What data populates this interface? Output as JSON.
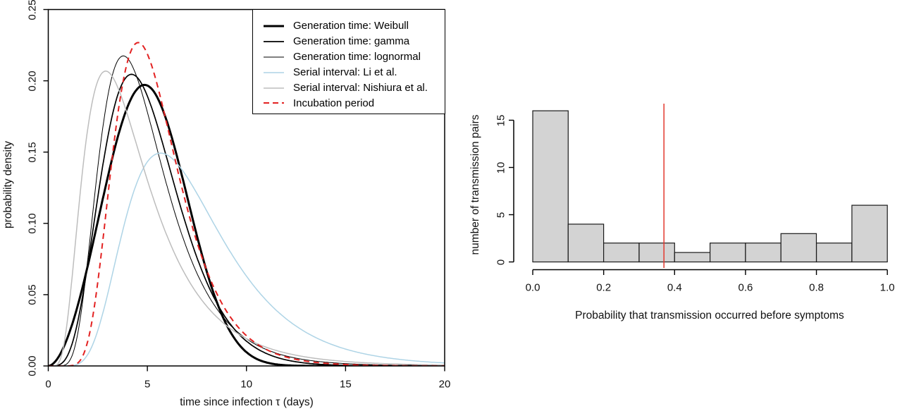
{
  "page": {
    "background": "#ffffff"
  },
  "chart_data": [
    {
      "id": "left-distributions",
      "type": "line",
      "title": "",
      "xlabel": "time since infection τ (days)",
      "ylabel": "probability density",
      "xlim": [
        0,
        20
      ],
      "ylim": [
        0,
        0.25
      ],
      "x_ticks": [
        0,
        5,
        10,
        15,
        20
      ],
      "x_tick_labels": [
        "0",
        "5",
        "10",
        "15",
        "20"
      ],
      "y_ticks": [
        0,
        0.05,
        0.1,
        0.15,
        0.2,
        0.25
      ],
      "y_tick_labels": [
        "0.00",
        "0.05",
        "0.10",
        "0.15",
        "0.20",
        "0.25"
      ],
      "grid": false,
      "box": true,
      "legend_position": "top-right",
      "x_samples": [
        0,
        1,
        2,
        3,
        4,
        5,
        6,
        7,
        8,
        9,
        10,
        11,
        12,
        13,
        14,
        15,
        16,
        17,
        18,
        19,
        20
      ],
      "series": [
        {
          "name": "Generation time: Weibull",
          "color": "#000000",
          "width": 3,
          "dash": null,
          "distribution": {
            "type": "weibull",
            "shape": 2.826,
            "scale": 5.665
          },
          "peak": {
            "x": 4.85,
            "y": 0.197
          },
          "y_samples": [
            0,
            0.0209,
            0.0707,
            0.1324,
            0.1818,
            0.1967,
            0.1709,
            0.1192,
            0.0659,
            0.0287,
            0.0097,
            0.0025,
            0.0005,
            0.0001,
            0,
            0,
            0,
            0,
            0,
            0,
            0
          ]
        },
        {
          "name": "Generation time: gamma",
          "color": "#000000",
          "width": 1.7,
          "dash": null,
          "distribution": {
            "type": "gamma",
            "shape": 5.8,
            "rate": 1.143
          },
          "peak": {
            "x": 4.2,
            "y": 0.206
          },
          "y_samples": [
            0,
            0.0081,
            0.0718,
            0.1603,
            0.2034,
            0.1893,
            0.1448,
            0.0968,
            0.0586,
            0.0328,
            0.0174,
            0.0088,
            0.0042,
            0.002,
            0.0009,
            0.0004,
            0.0002,
            0.0001,
            0,
            0,
            0
          ]
        },
        {
          "name": "Generation time: lognormal",
          "color": "#000000",
          "width": 1,
          "dash": null,
          "distribution": {
            "type": "lognormal",
            "meanlog": 1.525,
            "sdlog": 0.44
          },
          "peak": {
            "x": 3.8,
            "y": 0.217
          },
          "y_samples": [
            0,
            0.0022,
            0.0759,
            0.189,
            0.2157,
            0.178,
            0.1257,
            0.082,
            0.0512,
            0.0314,
            0.019,
            0.0115,
            0.007,
            0.0043,
            0.0026,
            0.0016,
            0.001,
            0.0007,
            0.0004,
            0.0003,
            0.0002
          ]
        },
        {
          "name": "Serial interval: Li et al.",
          "color": "#aed4e6",
          "width": 1.5,
          "dash": null,
          "distribution": {
            "type": "lognormal",
            "meanlog": 1.9215,
            "sdlog": 0.4323
          },
          "peak": {
            "x": 5.7,
            "y": 0.148
          },
          "y_samples": [
            0,
            0,
            0.0082,
            0.0503,
            0.1072,
            0.1422,
            0.147,
            0.1316,
            0.1079,
            0.0837,
            0.0626,
            0.0457,
            0.0329,
            0.0235,
            0.0166,
            0.0118,
            0.0083,
            0.0059,
            0.0042,
            0.003,
            0.0021
          ]
        },
        {
          "name": "Serial interval: Nishiura et al.",
          "color": "#bdbdbd",
          "width": 1.5,
          "dash": null,
          "distribution": {
            "type": "lognormal",
            "meanlog": 1.3863,
            "sdlog": 0.568
          },
          "peak": {
            "x": 2.9,
            "y": 0.206
          },
          "y_samples": [
            0,
            0.0357,
            0.1668,
            0.2059,
            0.1756,
            0.13,
            0.0907,
            0.0618,
            0.0417,
            0.0282,
            0.0191,
            0.0131,
            0.009,
            0.0063,
            0.0044,
            0.0031,
            0.0022,
            0.0016,
            0.0012,
            0.0009,
            0.0006
          ]
        },
        {
          "name": "Incubation period",
          "color": "#e32222",
          "width": 2,
          "dash": [
            8,
            6
          ],
          "distribution": {
            "type": "lognormal",
            "meanlog": 1.644,
            "sdlog": 0.363
          },
          "peak": {
            "x": 4.55,
            "y": 0.227
          },
          "y_samples": [
            0,
            0,
            0.0178,
            0.1185,
            0.2135,
            0.2188,
            0.1686,
            0.1111,
            0.0669,
            0.0382,
            0.0212,
            0.0116,
            0.0063,
            0.0034,
            0.0018,
            0.001,
            0.0006,
            0.0003,
            0.0002,
            0.0001,
            0.0001
          ]
        }
      ]
    },
    {
      "id": "right-histogram",
      "type": "bar",
      "title": "",
      "xlabel": "Probability that transmission occurred before symptoms",
      "ylabel": "number of transmission pairs",
      "xlim": [
        0,
        1
      ],
      "ylim": [
        0,
        16
      ],
      "bin_edges": [
        0,
        0.1,
        0.2,
        0.3,
        0.4,
        0.5,
        0.6,
        0.7,
        0.8,
        0.9,
        1.0
      ],
      "counts": [
        16,
        4,
        2,
        2,
        1,
        2,
        2,
        3,
        2,
        6
      ],
      "bar_fill": "#d3d3d3",
      "bar_border": "#1a1a1a",
      "x_ticks": [
        0,
        0.2,
        0.4,
        0.6,
        0.8,
        1.0
      ],
      "x_tick_labels": [
        "0.0",
        "0.2",
        "0.4",
        "0.6",
        "0.8",
        "1.0"
      ],
      "y_ticks": [
        0,
        5,
        10,
        15
      ],
      "y_tick_labels": [
        "0",
        "5",
        "10",
        "15"
      ],
      "grid": false,
      "vline": {
        "x": 0.37,
        "color": "#e3392f"
      }
    }
  ]
}
